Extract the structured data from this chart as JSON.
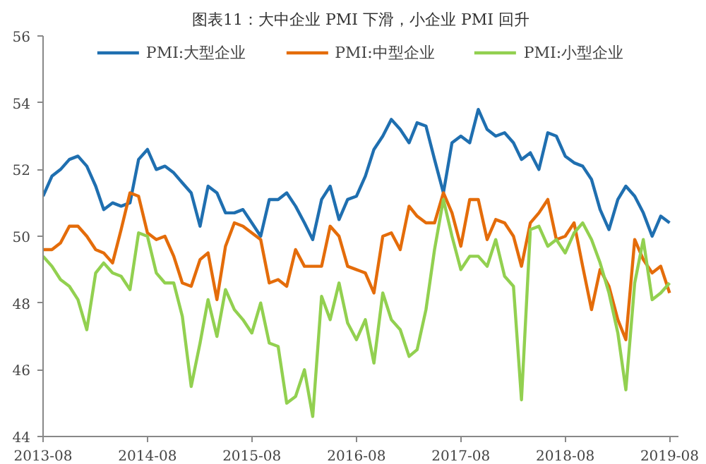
{
  "chart_data": {
    "type": "line",
    "title": "图表11：大中企业 PMI 下滑，小企业 PMI 回升",
    "x": [
      "2013-08",
      "2013-09",
      "2013-10",
      "2013-11",
      "2013-12",
      "2014-01",
      "2014-02",
      "2014-03",
      "2014-04",
      "2014-05",
      "2014-06",
      "2014-07",
      "2014-08",
      "2014-09",
      "2014-10",
      "2014-11",
      "2014-12",
      "2015-01",
      "2015-02",
      "2015-03",
      "2015-04",
      "2015-05",
      "2015-06",
      "2015-07",
      "2015-08",
      "2015-09",
      "2015-10",
      "2015-11",
      "2015-12",
      "2016-01",
      "2016-02",
      "2016-03",
      "2016-04",
      "2016-05",
      "2016-06",
      "2016-07",
      "2016-08",
      "2016-09",
      "2016-10",
      "2016-11",
      "2016-12",
      "2017-01",
      "2017-02",
      "2017-03",
      "2017-04",
      "2017-05",
      "2017-06",
      "2017-07",
      "2017-08",
      "2017-09",
      "2017-10",
      "2017-11",
      "2017-12",
      "2018-01",
      "2018-02",
      "2018-03",
      "2018-04",
      "2018-05",
      "2018-06",
      "2018-07",
      "2018-08",
      "2018-09",
      "2018-10",
      "2018-11",
      "2018-12",
      "2019-01",
      "2019-02",
      "2019-03",
      "2019-04",
      "2019-05",
      "2019-06",
      "2019-07",
      "2019-08"
    ],
    "series": [
      {
        "name": "PMI:大型企业",
        "color": "#1f6fb0",
        "values": [
          51.2,
          51.8,
          52.0,
          52.3,
          52.4,
          52.1,
          51.5,
          50.8,
          51.0,
          50.9,
          51.0,
          52.3,
          52.6,
          52.0,
          52.1,
          51.9,
          51.6,
          51.3,
          50.3,
          51.5,
          51.3,
          50.7,
          50.7,
          50.8,
          50.4,
          50.0,
          51.1,
          51.1,
          51.3,
          50.9,
          50.4,
          49.9,
          51.1,
          51.5,
          50.5,
          51.1,
          51.2,
          51.8,
          52.6,
          53.0,
          53.5,
          53.2,
          52.8,
          53.4,
          53.3,
          52.3,
          51.3,
          52.8,
          53.0,
          52.8,
          53.8,
          53.2,
          53.0,
          53.1,
          52.8,
          52.3,
          52.5,
          52.0,
          53.1,
          53.0,
          52.4,
          52.2,
          52.1,
          51.7,
          50.8,
          50.2,
          51.1,
          51.5,
          51.2,
          50.7,
          50.0,
          50.6,
          50.4
        ]
      },
      {
        "name": "PMI:中型企业",
        "color": "#e46c0a",
        "values": [
          49.6,
          49.6,
          49.8,
          50.3,
          50.3,
          50.0,
          49.6,
          49.5,
          49.2,
          50.2,
          51.3,
          51.2,
          50.1,
          49.9,
          50.0,
          49.4,
          48.6,
          48.5,
          49.3,
          49.5,
          48.1,
          49.7,
          50.4,
          50.3,
          50.1,
          49.9,
          48.6,
          48.7,
          48.5,
          49.6,
          49.1,
          49.1,
          49.1,
          50.3,
          50.0,
          49.1,
          49.0,
          48.9,
          48.3,
          50.0,
          50.1,
          49.6,
          50.9,
          50.6,
          50.4,
          50.4,
          51.3,
          50.7,
          49.7,
          51.1,
          51.1,
          49.9,
          50.5,
          50.4,
          50.0,
          49.1,
          50.4,
          50.7,
          51.1,
          49.9,
          50.0,
          50.4,
          49.1,
          47.8,
          49.0,
          48.5,
          47.5,
          46.9,
          49.9,
          49.3,
          48.9,
          49.1,
          48.3
        ]
      },
      {
        "name": "PMI:小型企业",
        "color": "#92d050",
        "values": [
          49.4,
          49.1,
          48.7,
          48.5,
          48.1,
          47.2,
          48.9,
          49.2,
          48.9,
          48.8,
          48.4,
          50.1,
          50.0,
          48.9,
          48.6,
          48.6,
          47.6,
          45.5,
          46.8,
          48.1,
          47.0,
          48.4,
          47.8,
          47.5,
          47.1,
          48.0,
          46.8,
          46.7,
          45.0,
          45.2,
          46.0,
          44.6,
          48.2,
          47.5,
          48.6,
          47.4,
          46.9,
          47.5,
          46.2,
          48.3,
          47.5,
          47.2,
          46.4,
          46.6,
          47.8,
          49.6,
          51.1,
          50.0,
          49.0,
          49.4,
          49.4,
          49.1,
          49.9,
          48.8,
          48.5,
          45.1,
          50.2,
          50.3,
          49.7,
          49.9,
          49.5,
          50.1,
          50.4,
          49.9,
          49.2,
          48.3,
          47.1,
          45.4,
          48.6,
          49.9,
          48.1,
          48.3,
          48.6
        ]
      }
    ],
    "xlim": [
      "2013-08",
      "2019-09"
    ],
    "xticks": [
      "2013-08",
      "2014-08",
      "2015-08",
      "2016-08",
      "2017-08",
      "2018-08",
      "2019-08"
    ],
    "ylim": [
      44,
      56
    ],
    "yticks": [
      44,
      46,
      48,
      50,
      52,
      54,
      56
    ],
    "grid": false,
    "legend": "top",
    "marker": "none",
    "line_style": "solid"
  }
}
